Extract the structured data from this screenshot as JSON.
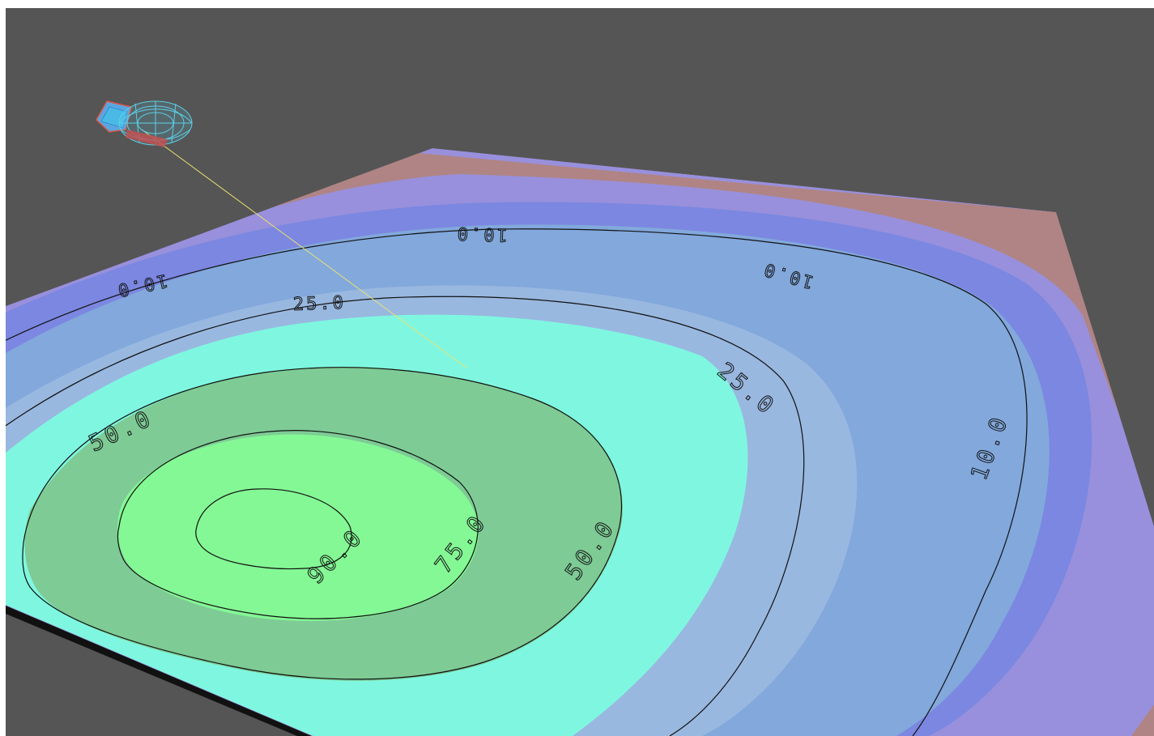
{
  "scene": {
    "viewport_background": "#555555",
    "contour_labels": {
      "level_10_top": "10.0",
      "level_10_left": "10.0",
      "level_10_right_top": "10.0",
      "level_10_right": "10.0",
      "level_25_top": "25.0",
      "level_25_right": "25.0",
      "level_50_left": "50.0",
      "level_50_right": "50.0",
      "level_75": "75.0",
      "level_90": "90.0",
      "level_90b": "90.0"
    },
    "colors": {
      "band_below_5": "#b08484",
      "band_5_10": "#9890dc",
      "band_10_15": "#7b87e0",
      "band_15_25": "#82a8dc",
      "band_25_35": "#99b8e0",
      "band_35_50": "#7ff7e0",
      "band_50_75": "#7ecb95",
      "band_75_100": "#84f895",
      "beam_line": "#e8e070",
      "antenna_wire": "#5ccfe8",
      "antenna_body": "#e0533f"
    }
  }
}
